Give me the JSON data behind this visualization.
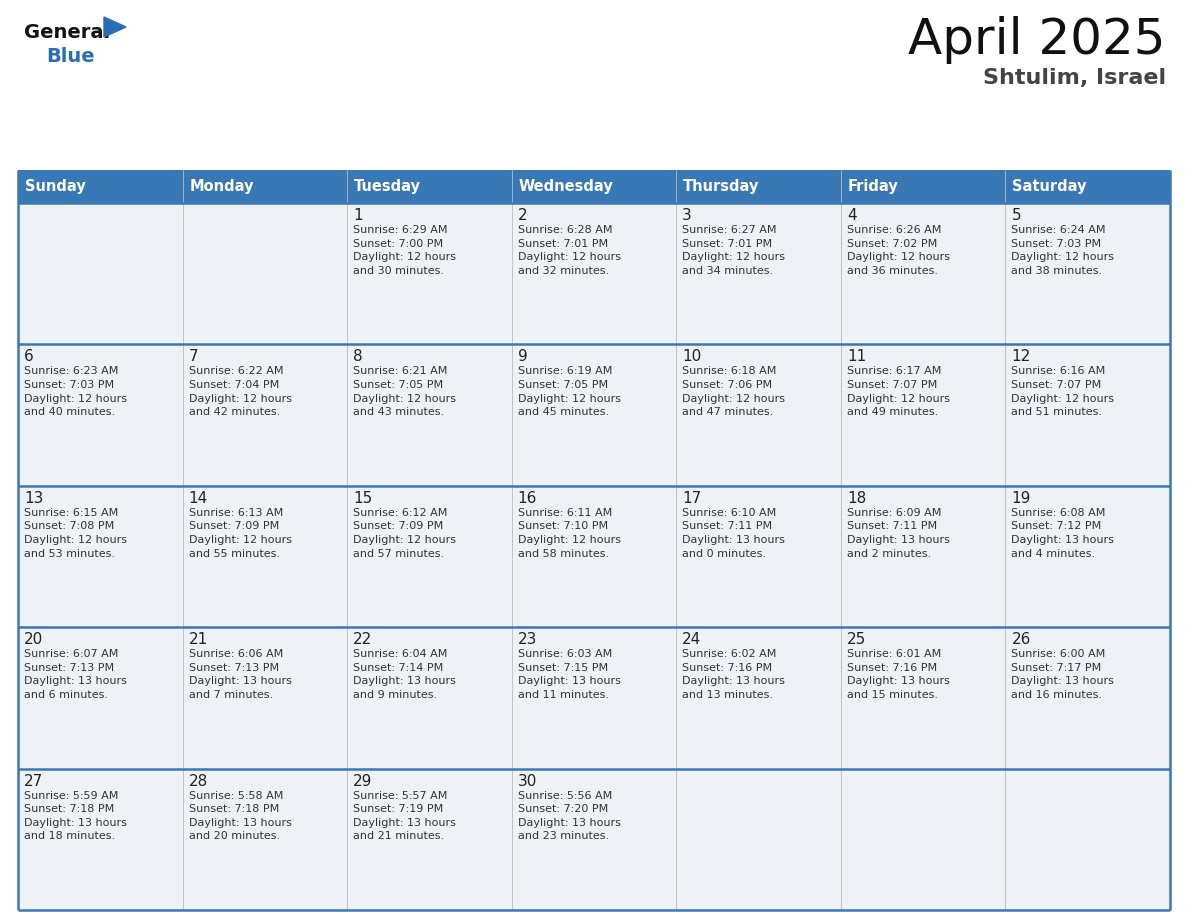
{
  "title": "April 2025",
  "subtitle": "Shtulim, Israel",
  "days_of_week": [
    "Sunday",
    "Monday",
    "Tuesday",
    "Wednesday",
    "Thursday",
    "Friday",
    "Saturday"
  ],
  "header_bg": "#3878b4",
  "header_text": "#ffffff",
  "cell_bg": "#eef1f5",
  "cell_bg_white": "#ffffff",
  "border_color": "#3878b4",
  "grid_color": "#bbbbbb",
  "day_num_color": "#222222",
  "cell_text_color": "#333333",
  "title_color": "#111111",
  "subtitle_color": "#444444",
  "logo_general_color": "#111111",
  "logo_blue_color": "#2a6db5",
  "weeks": [
    [
      {
        "day": "",
        "info": ""
      },
      {
        "day": "",
        "info": ""
      },
      {
        "day": "1",
        "info": "Sunrise: 6:29 AM\nSunset: 7:00 PM\nDaylight: 12 hours\nand 30 minutes."
      },
      {
        "day": "2",
        "info": "Sunrise: 6:28 AM\nSunset: 7:01 PM\nDaylight: 12 hours\nand 32 minutes."
      },
      {
        "day": "3",
        "info": "Sunrise: 6:27 AM\nSunset: 7:01 PM\nDaylight: 12 hours\nand 34 minutes."
      },
      {
        "day": "4",
        "info": "Sunrise: 6:26 AM\nSunset: 7:02 PM\nDaylight: 12 hours\nand 36 minutes."
      },
      {
        "day": "5",
        "info": "Sunrise: 6:24 AM\nSunset: 7:03 PM\nDaylight: 12 hours\nand 38 minutes."
      }
    ],
    [
      {
        "day": "6",
        "info": "Sunrise: 6:23 AM\nSunset: 7:03 PM\nDaylight: 12 hours\nand 40 minutes."
      },
      {
        "day": "7",
        "info": "Sunrise: 6:22 AM\nSunset: 7:04 PM\nDaylight: 12 hours\nand 42 minutes."
      },
      {
        "day": "8",
        "info": "Sunrise: 6:21 AM\nSunset: 7:05 PM\nDaylight: 12 hours\nand 43 minutes."
      },
      {
        "day": "9",
        "info": "Sunrise: 6:19 AM\nSunset: 7:05 PM\nDaylight: 12 hours\nand 45 minutes."
      },
      {
        "day": "10",
        "info": "Sunrise: 6:18 AM\nSunset: 7:06 PM\nDaylight: 12 hours\nand 47 minutes."
      },
      {
        "day": "11",
        "info": "Sunrise: 6:17 AM\nSunset: 7:07 PM\nDaylight: 12 hours\nand 49 minutes."
      },
      {
        "day": "12",
        "info": "Sunrise: 6:16 AM\nSunset: 7:07 PM\nDaylight: 12 hours\nand 51 minutes."
      }
    ],
    [
      {
        "day": "13",
        "info": "Sunrise: 6:15 AM\nSunset: 7:08 PM\nDaylight: 12 hours\nand 53 minutes."
      },
      {
        "day": "14",
        "info": "Sunrise: 6:13 AM\nSunset: 7:09 PM\nDaylight: 12 hours\nand 55 minutes."
      },
      {
        "day": "15",
        "info": "Sunrise: 6:12 AM\nSunset: 7:09 PM\nDaylight: 12 hours\nand 57 minutes."
      },
      {
        "day": "16",
        "info": "Sunrise: 6:11 AM\nSunset: 7:10 PM\nDaylight: 12 hours\nand 58 minutes."
      },
      {
        "day": "17",
        "info": "Sunrise: 6:10 AM\nSunset: 7:11 PM\nDaylight: 13 hours\nand 0 minutes."
      },
      {
        "day": "18",
        "info": "Sunrise: 6:09 AM\nSunset: 7:11 PM\nDaylight: 13 hours\nand 2 minutes."
      },
      {
        "day": "19",
        "info": "Sunrise: 6:08 AM\nSunset: 7:12 PM\nDaylight: 13 hours\nand 4 minutes."
      }
    ],
    [
      {
        "day": "20",
        "info": "Sunrise: 6:07 AM\nSunset: 7:13 PM\nDaylight: 13 hours\nand 6 minutes."
      },
      {
        "day": "21",
        "info": "Sunrise: 6:06 AM\nSunset: 7:13 PM\nDaylight: 13 hours\nand 7 minutes."
      },
      {
        "day": "22",
        "info": "Sunrise: 6:04 AM\nSunset: 7:14 PM\nDaylight: 13 hours\nand 9 minutes."
      },
      {
        "day": "23",
        "info": "Sunrise: 6:03 AM\nSunset: 7:15 PM\nDaylight: 13 hours\nand 11 minutes."
      },
      {
        "day": "24",
        "info": "Sunrise: 6:02 AM\nSunset: 7:16 PM\nDaylight: 13 hours\nand 13 minutes."
      },
      {
        "day": "25",
        "info": "Sunrise: 6:01 AM\nSunset: 7:16 PM\nDaylight: 13 hours\nand 15 minutes."
      },
      {
        "day": "26",
        "info": "Sunrise: 6:00 AM\nSunset: 7:17 PM\nDaylight: 13 hours\nand 16 minutes."
      }
    ],
    [
      {
        "day": "27",
        "info": "Sunrise: 5:59 AM\nSunset: 7:18 PM\nDaylight: 13 hours\nand 18 minutes."
      },
      {
        "day": "28",
        "info": "Sunrise: 5:58 AM\nSunset: 7:18 PM\nDaylight: 13 hours\nand 20 minutes."
      },
      {
        "day": "29",
        "info": "Sunrise: 5:57 AM\nSunset: 7:19 PM\nDaylight: 13 hours\nand 21 minutes."
      },
      {
        "day": "30",
        "info": "Sunrise: 5:56 AM\nSunset: 7:20 PM\nDaylight: 13 hours\nand 23 minutes."
      },
      {
        "day": "",
        "info": ""
      },
      {
        "day": "",
        "info": ""
      },
      {
        "day": "",
        "info": ""
      }
    ]
  ]
}
